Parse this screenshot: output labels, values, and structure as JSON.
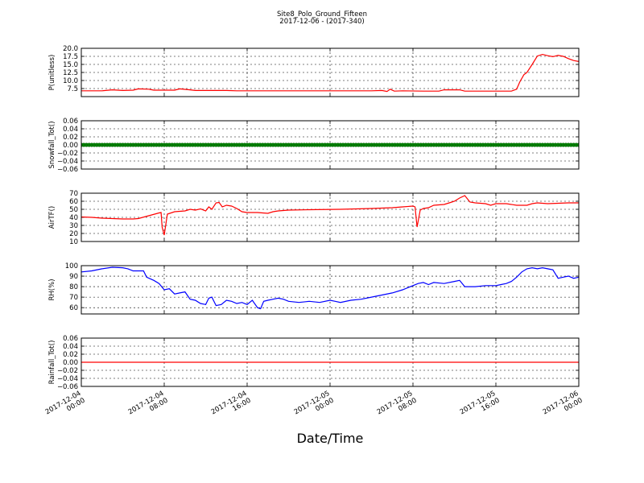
{
  "figure": {
    "title": "Site8_Polo_Ground_Fifteen",
    "subtitle": "2017-12-06 - (2017-340)",
    "xlabel": "Date/Time",
    "x_ticks": [
      {
        "l1": "2017-12-04",
        "l2": "00:00",
        "t": 0
      },
      {
        "l1": "2017-12-04",
        "l2": "08:00",
        "t": 8
      },
      {
        "l1": "2017-12-04",
        "l2": "16:00",
        "t": 16
      },
      {
        "l1": "2017-12-05",
        "l2": "00:00",
        "t": 24
      },
      {
        "l1": "2017-12-05",
        "l2": "08:00",
        "t": 32
      },
      {
        "l1": "2017-12-05",
        "l2": "16:00",
        "t": 40
      },
      {
        "l1": "2017-12-06",
        "l2": "00:00",
        "t": 48
      }
    ]
  },
  "chart_data": [
    {
      "type": "line",
      "ylabel": "P(unitless)",
      "ylim": [
        5,
        20
      ],
      "yticks": [
        "7.5",
        "10.0",
        "12.5",
        "15.0",
        "17.5",
        "20.0"
      ],
      "ytick_values": [
        7.5,
        10,
        12.5,
        15,
        17.5,
        20
      ],
      "grid": true,
      "color": "#ff0000",
      "points": [
        [
          0,
          6.8
        ],
        [
          2,
          6.8
        ],
        [
          3,
          7.1
        ],
        [
          4,
          6.9
        ],
        [
          5,
          7.0
        ],
        [
          5.5,
          7.4
        ],
        [
          6.5,
          7.3
        ],
        [
          7,
          7.0
        ],
        [
          9,
          7.0
        ],
        [
          9.5,
          7.4
        ],
        [
          10.5,
          7.1
        ],
        [
          11,
          6.9
        ],
        [
          14,
          6.9
        ],
        [
          15,
          6.8
        ],
        [
          20,
          6.8
        ],
        [
          28,
          6.8
        ],
        [
          29,
          6.9
        ],
        [
          29.5,
          6.6
        ],
        [
          29.8,
          7.3
        ],
        [
          30.2,
          6.7
        ],
        [
          31,
          6.8
        ],
        [
          33,
          6.7
        ],
        [
          34.5,
          6.7
        ],
        [
          35,
          7.1
        ],
        [
          36.5,
          7.1
        ],
        [
          37,
          6.7
        ],
        [
          41,
          6.7
        ],
        [
          41.5,
          6.7
        ],
        [
          42,
          7.3
        ],
        [
          42.3,
          9.5
        ],
        [
          42.7,
          11.8
        ],
        [
          43,
          12.5
        ],
        [
          43.5,
          15
        ],
        [
          44,
          17.6
        ],
        [
          44.5,
          18.1
        ],
        [
          45,
          17.7
        ],
        [
          45.5,
          17.4
        ],
        [
          46,
          17.8
        ],
        [
          46.5,
          17.5
        ],
        [
          47,
          16.8
        ],
        [
          47.5,
          16.2
        ],
        [
          48,
          15.9
        ],
        [
          48.3,
          15.6
        ]
      ]
    },
    {
      "type": "line",
      "ylabel": "Snowfall_Tot()",
      "ylim": [
        -0.06,
        0.06
      ],
      "yticks": [
        "−0.06",
        "−0.04",
        "−0.02",
        "0.00",
        "0.02",
        "0.04",
        "0.06"
      ],
      "ytick_values": [
        -0.06,
        -0.04,
        -0.02,
        0,
        0.02,
        0.04,
        0.06
      ],
      "grid": true,
      "color": "#008000",
      "marker": "circle",
      "points": [
        [
          0,
          0
        ],
        [
          48,
          0
        ]
      ]
    },
    {
      "type": "line",
      "ylabel": "AirTF()",
      "ylim": [
        10,
        70
      ],
      "yticks": [
        "10",
        "20",
        "30",
        "40",
        "50",
        "60",
        "70"
      ],
      "ytick_values": [
        10,
        20,
        30,
        40,
        50,
        60,
        70
      ],
      "grid": true,
      "color": "#ff0000",
      "points": [
        [
          0,
          40.5
        ],
        [
          1,
          40
        ],
        [
          2,
          39
        ],
        [
          3,
          38.5
        ],
        [
          4,
          38
        ],
        [
          5,
          38
        ],
        [
          5.5,
          38.5
        ],
        [
          6.5,
          42
        ],
        [
          7.5,
          45.5
        ],
        [
          7.7,
          46
        ],
        [
          7.8,
          28
        ],
        [
          8,
          18
        ],
        [
          8.3,
          44
        ],
        [
          9,
          47
        ],
        [
          10,
          48
        ],
        [
          10.5,
          50
        ],
        [
          11,
          49
        ],
        [
          11.5,
          50.5
        ],
        [
          12,
          48
        ],
        [
          12.3,
          53
        ],
        [
          12.6,
          50
        ],
        [
          13,
          58
        ],
        [
          13.3,
          58.5
        ],
        [
          13.6,
          53
        ],
        [
          14,
          55
        ],
        [
          14.5,
          54
        ],
        [
          15,
          51
        ],
        [
          15.5,
          47
        ],
        [
          16,
          46
        ],
        [
          17,
          46
        ],
        [
          17.5,
          45.5
        ],
        [
          18,
          45
        ],
        [
          18.5,
          47
        ],
        [
          19,
          48
        ],
        [
          20,
          49
        ],
        [
          22,
          49.5
        ],
        [
          25,
          50
        ],
        [
          28,
          51
        ],
        [
          30,
          52
        ],
        [
          31,
          53
        ],
        [
          32,
          54
        ],
        [
          32.2,
          53
        ],
        [
          32.4,
          28
        ],
        [
          32.7,
          49
        ],
        [
          33,
          51
        ],
        [
          33.5,
          52
        ],
        [
          34,
          55
        ],
        [
          35,
          56
        ],
        [
          35.5,
          58
        ],
        [
          36,
          60
        ],
        [
          36.5,
          64
        ],
        [
          37,
          67
        ],
        [
          37.5,
          59
        ],
        [
          38,
          58
        ],
        [
          39,
          57
        ],
        [
          39.5,
          55
        ],
        [
          40,
          57
        ],
        [
          41,
          57
        ],
        [
          42,
          55
        ],
        [
          43,
          55
        ],
        [
          43.5,
          57
        ],
        [
          44,
          58
        ],
        [
          45,
          57
        ],
        [
          47,
          58
        ],
        [
          48,
          58
        ],
        [
          48.3,
          57.5
        ]
      ]
    },
    {
      "type": "line",
      "ylabel": "RH(%)",
      "ylim": [
        54,
        100
      ],
      "yticks": [
        "60",
        "70",
        "80",
        "90",
        "100"
      ],
      "ytick_values": [
        60,
        70,
        80,
        90,
        100
      ],
      "grid": true,
      "color": "#0000ff",
      "points": [
        [
          0,
          94
        ],
        [
          1,
          95
        ],
        [
          2,
          97
        ],
        [
          3,
          98.5
        ],
        [
          4,
          98
        ],
        [
          4.5,
          97
        ],
        [
          5,
          95
        ],
        [
          6,
          95
        ],
        [
          6.3,
          89
        ],
        [
          7,
          86
        ],
        [
          7.5,
          83
        ],
        [
          8,
          77
        ],
        [
          8.5,
          78
        ],
        [
          9,
          73
        ],
        [
          9.5,
          74
        ],
        [
          10,
          75
        ],
        [
          10.5,
          68
        ],
        [
          11,
          67
        ],
        [
          11.5,
          64
        ],
        [
          12,
          63
        ],
        [
          12.3,
          69
        ],
        [
          12.6,
          70
        ],
        [
          13,
          62
        ],
        [
          13.5,
          63
        ],
        [
          14,
          67
        ],
        [
          14.5,
          66
        ],
        [
          15,
          64
        ],
        [
          15.5,
          65
        ],
        [
          16,
          63
        ],
        [
          16.5,
          67
        ],
        [
          17,
          60
        ],
        [
          17.3,
          59
        ],
        [
          17.6,
          66
        ],
        [
          18,
          67
        ],
        [
          18.5,
          68
        ],
        [
          19,
          69
        ],
        [
          19.5,
          68
        ],
        [
          20,
          66
        ],
        [
          21,
          65
        ],
        [
          22,
          66
        ],
        [
          23,
          65
        ],
        [
          24,
          67
        ],
        [
          24.5,
          66
        ],
        [
          25,
          65
        ],
        [
          26,
          67
        ],
        [
          27,
          68
        ],
        [
          28,
          70
        ],
        [
          29,
          72
        ],
        [
          30,
          74
        ],
        [
          31,
          77
        ],
        [
          32,
          81
        ],
        [
          32.5,
          83
        ],
        [
          33,
          84
        ],
        [
          33.5,
          82
        ],
        [
          34,
          84
        ],
        [
          35,
          83
        ],
        [
          36,
          85
        ],
        [
          36.5,
          86
        ],
        [
          37,
          80
        ],
        [
          38,
          80
        ],
        [
          39,
          81
        ],
        [
          40,
          81
        ],
        [
          40.5,
          82
        ],
        [
          41,
          83
        ],
        [
          41.5,
          85
        ],
        [
          42,
          89
        ],
        [
          42.5,
          94
        ],
        [
          43,
          97
        ],
        [
          43.5,
          98
        ],
        [
          44,
          97
        ],
        [
          44.5,
          98
        ],
        [
          45,
          97
        ],
        [
          45.5,
          96
        ],
        [
          46,
          88
        ],
        [
          46.5,
          89
        ],
        [
          47,
          90
        ],
        [
          47.5,
          88
        ],
        [
          48,
          89
        ],
        [
          48.3,
          90
        ]
      ]
    },
    {
      "type": "line",
      "ylabel": "Rainfall_Tot()",
      "ylim": [
        -0.06,
        0.06
      ],
      "yticks": [
        "−0.06",
        "−0.04",
        "−0.02",
        "0.00",
        "0.02",
        "0.04",
        "0.06"
      ],
      "ytick_values": [
        -0.06,
        -0.04,
        -0.02,
        0,
        0.02,
        0.04,
        0.06
      ],
      "grid": true,
      "color": "#ff0000",
      "points": [
        [
          0,
          0
        ],
        [
          48,
          0
        ]
      ]
    }
  ]
}
